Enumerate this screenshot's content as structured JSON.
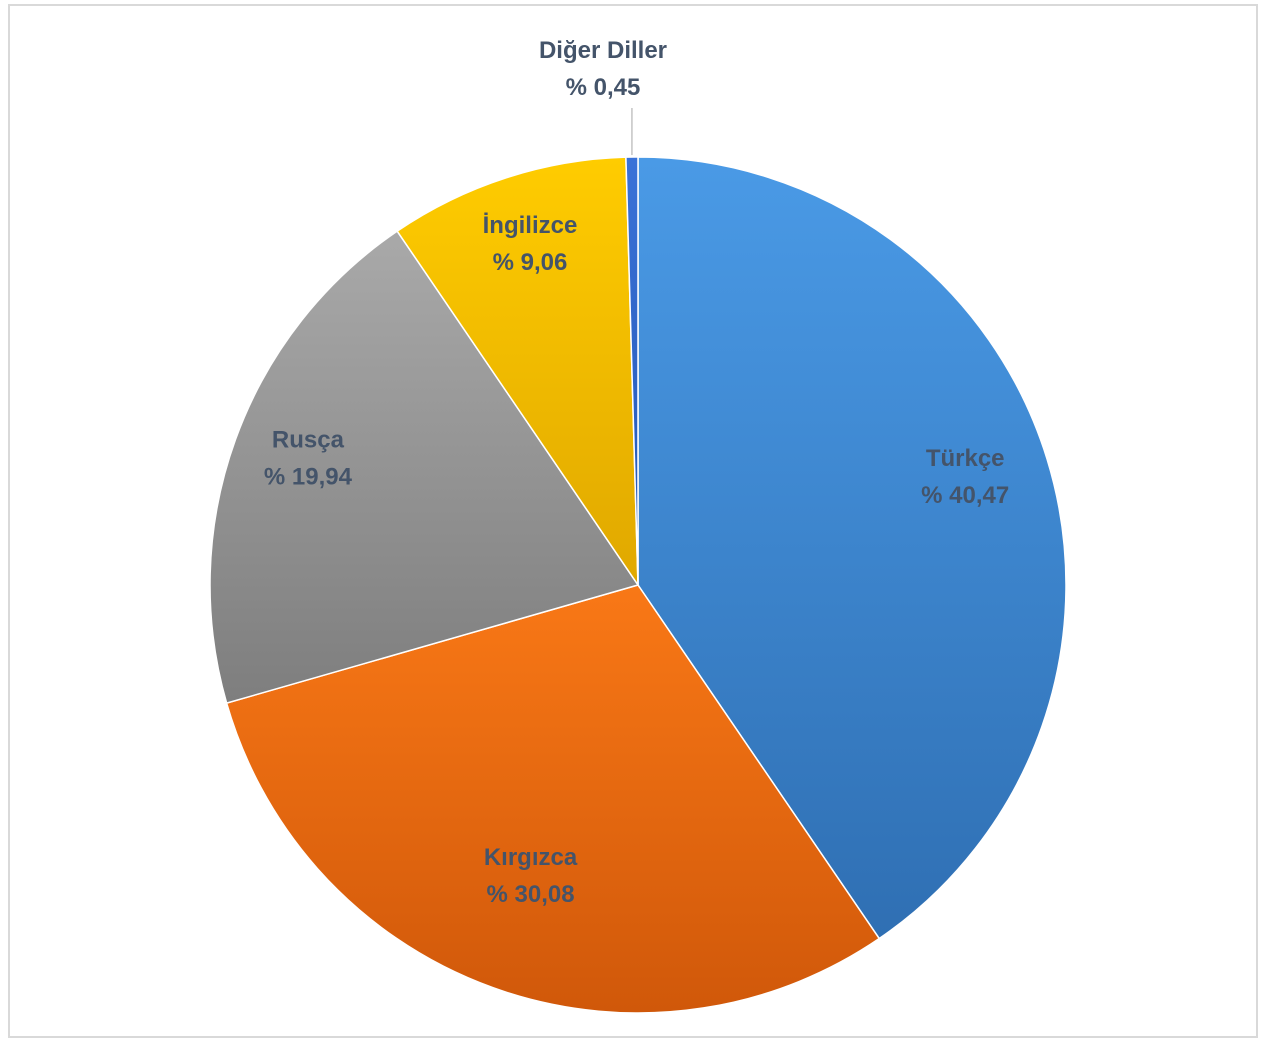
{
  "chart_data": {
    "type": "pie",
    "label_format": "% {value}",
    "slices": [
      {
        "label": "Türkçe",
        "value": 40.47,
        "value_text": "40,47",
        "color": "#3d85d3",
        "color_light": "#4a9ae6",
        "color_dark": "#2f6fb3"
      },
      {
        "label": "Kırgızca",
        "value": 30.08,
        "value_text": "30,08",
        "color": "#ec6b10",
        "color_light": "#f97816",
        "color_dark": "#d0580a"
      },
      {
        "label": "Rusça",
        "value": 19.94,
        "value_text": "19,94",
        "color": "#989898",
        "color_light": "#a9a9a9",
        "color_dark": "#7e7e7e"
      },
      {
        "label": "İngilizce",
        "value": 9.06,
        "value_text": "9,06",
        "color": "#f5bf00",
        "color_light": "#ffcc00",
        "color_dark": "#e0a800"
      },
      {
        "label": "Diğer Diller",
        "value": 0.45,
        "value_text": "0,45",
        "color": "#2c63c9",
        "color_light": "#3a72d8",
        "color_dark": "#2456b3"
      }
    ],
    "legend": "none",
    "start_angle": "12 o'clock",
    "direction": "clockwise"
  }
}
